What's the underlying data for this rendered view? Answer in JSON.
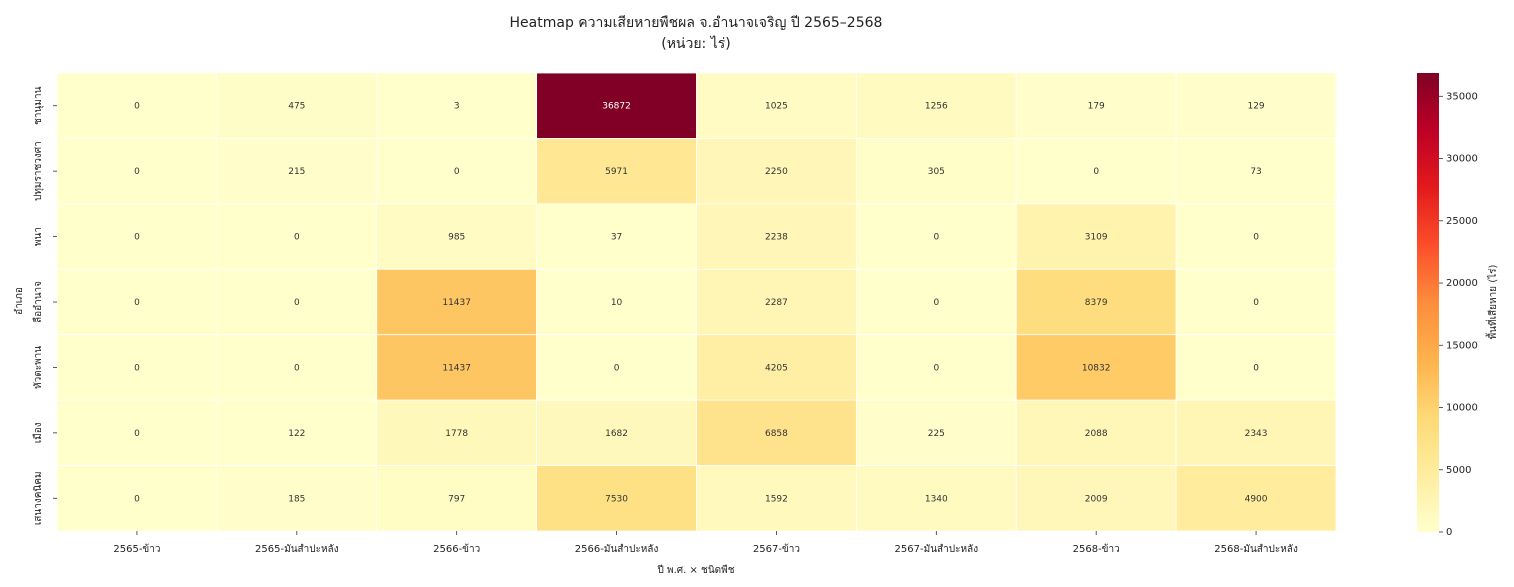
{
  "chart_data": {
    "type": "heatmap",
    "title": "Heatmap ความเสียหายพืชผล จ.อำนาจเจริญ ปี 2565–2568",
    "subtitle": "(หน่วย: ไร่)",
    "xlabel": "ปี พ.ศ. × ชนิดพืช",
    "ylabel": "อำเภอ",
    "columns": [
      "2565-ข้าว",
      "2565-มันสำปะหลัง",
      "2566-ข้าว",
      "2566-มันสำปะหลัง",
      "2567-ข้าว",
      "2567-มันสำปะหลัง",
      "2568-ข้าว",
      "2568-มันสำปะหลัง"
    ],
    "rows": [
      "ชานุมาน",
      "ปทุมราชวงศา",
      "พนา",
      "ลืออำนาจ",
      "หัวตะพาน",
      "เมือง",
      "เสนางคนิคม"
    ],
    "values": [
      [
        0,
        475,
        3,
        36872,
        1025,
        1256,
        179,
        129
      ],
      [
        0,
        215,
        0,
        5971,
        2250,
        305,
        0,
        73
      ],
      [
        0,
        0,
        985,
        37,
        2238,
        0,
        3109,
        0
      ],
      [
        0,
        0,
        11437,
        10,
        2287,
        0,
        8379,
        0
      ],
      [
        0,
        0,
        11437,
        0,
        4205,
        0,
        10832,
        0
      ],
      [
        0,
        122,
        1778,
        1682,
        6858,
        225,
        2088,
        2343
      ],
      [
        0,
        185,
        797,
        7530,
        1592,
        1340,
        2009,
        4900
      ]
    ],
    "vmin": 0,
    "vmax": 36872,
    "colormap": "YlOrRd",
    "colormap_stops": [
      "#ffffcc",
      "#ffeda0",
      "#fed976",
      "#feb24c",
      "#fd8d3c",
      "#fc4e2a",
      "#e31a1c",
      "#bd0026",
      "#800026"
    ],
    "colorbar": {
      "label": "พื้นที่เสียหาย (ไร่)",
      "ticks": [
        0,
        5000,
        10000,
        15000,
        20000,
        25000,
        30000,
        35000
      ]
    }
  }
}
